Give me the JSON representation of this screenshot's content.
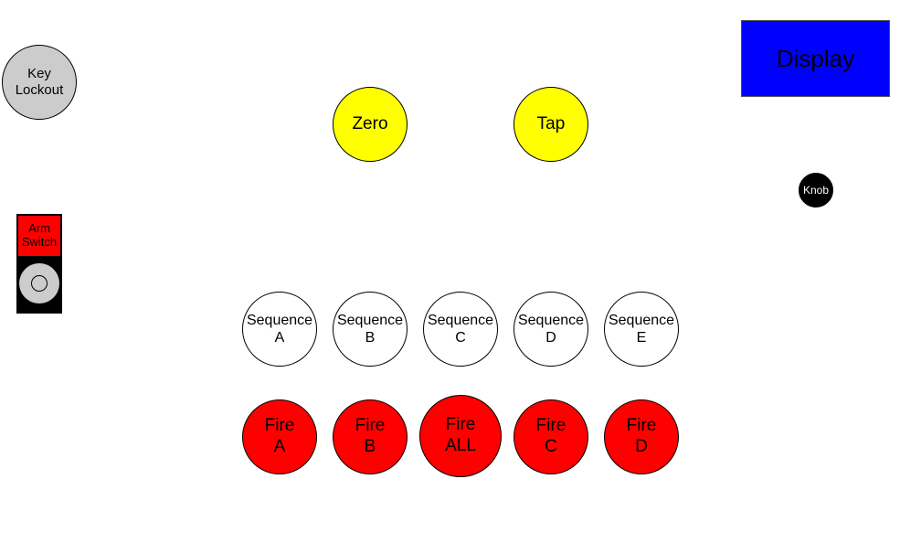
{
  "key_lockout": {
    "line1": "Key",
    "line2": "Lockout"
  },
  "arm_switch": {
    "line1": "Arm",
    "line2": "Switch"
  },
  "zero": {
    "label": "Zero"
  },
  "tap": {
    "label": "Tap"
  },
  "display": {
    "label": "Display"
  },
  "knob": {
    "label": "Knob"
  },
  "sequences": [
    {
      "line1": "Sequence",
      "line2": "A"
    },
    {
      "line1": "Sequence",
      "line2": "B"
    },
    {
      "line1": "Sequence",
      "line2": "C"
    },
    {
      "line1": "Sequence",
      "line2": "D"
    },
    {
      "line1": "Sequence",
      "line2": "E"
    }
  ],
  "fire_buttons": [
    {
      "line1": "Fire",
      "line2": "A"
    },
    {
      "line1": "Fire",
      "line2": "B"
    },
    {
      "line1": "Fire",
      "line2": "ALL"
    },
    {
      "line1": "Fire",
      "line2": "C"
    },
    {
      "line1": "Fire",
      "line2": "D"
    }
  ],
  "colors": {
    "key_lockout": "#cccccc",
    "zero_tap": "#ffff00",
    "display": "#0000ff",
    "knob": "#000000",
    "arm_switch_label": "#ff0000",
    "sequence": "#ffffff",
    "fire": "#ff0000"
  }
}
